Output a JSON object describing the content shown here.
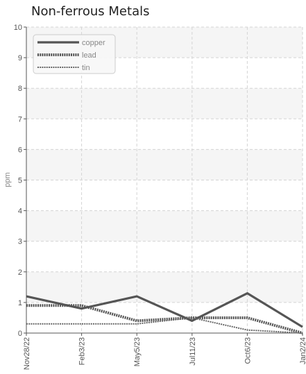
{
  "chart_data": {
    "type": "line",
    "title": "Non-ferrous Metals",
    "xlabel": "",
    "ylabel": "ppm",
    "ylim": [
      0,
      10
    ],
    "yticks": [
      "0",
      "1",
      "2",
      "3",
      "4",
      "5",
      "6",
      "7",
      "8",
      "9",
      "10"
    ],
    "categories": [
      "Nov28/22",
      "Feb3/23",
      "May5/23",
      "Jul11/23",
      "Oct6/23",
      "Jan2/24"
    ],
    "grid": true,
    "legend_position": "top-left",
    "series": [
      {
        "name": "copper",
        "color": "#555555",
        "style": "solid",
        "values": [
          1.2,
          0.8,
          1.2,
          0.4,
          1.3,
          0.2
        ]
      },
      {
        "name": "lead",
        "color": "#555555",
        "style": "dotted-thick",
        "values": [
          0.9,
          0.9,
          0.4,
          0.5,
          0.5,
          0.0
        ]
      },
      {
        "name": "tin",
        "color": "#666666",
        "style": "dotted-thin",
        "values": [
          0.3,
          0.3,
          0.3,
          0.5,
          0.1,
          0.0
        ]
      }
    ]
  }
}
